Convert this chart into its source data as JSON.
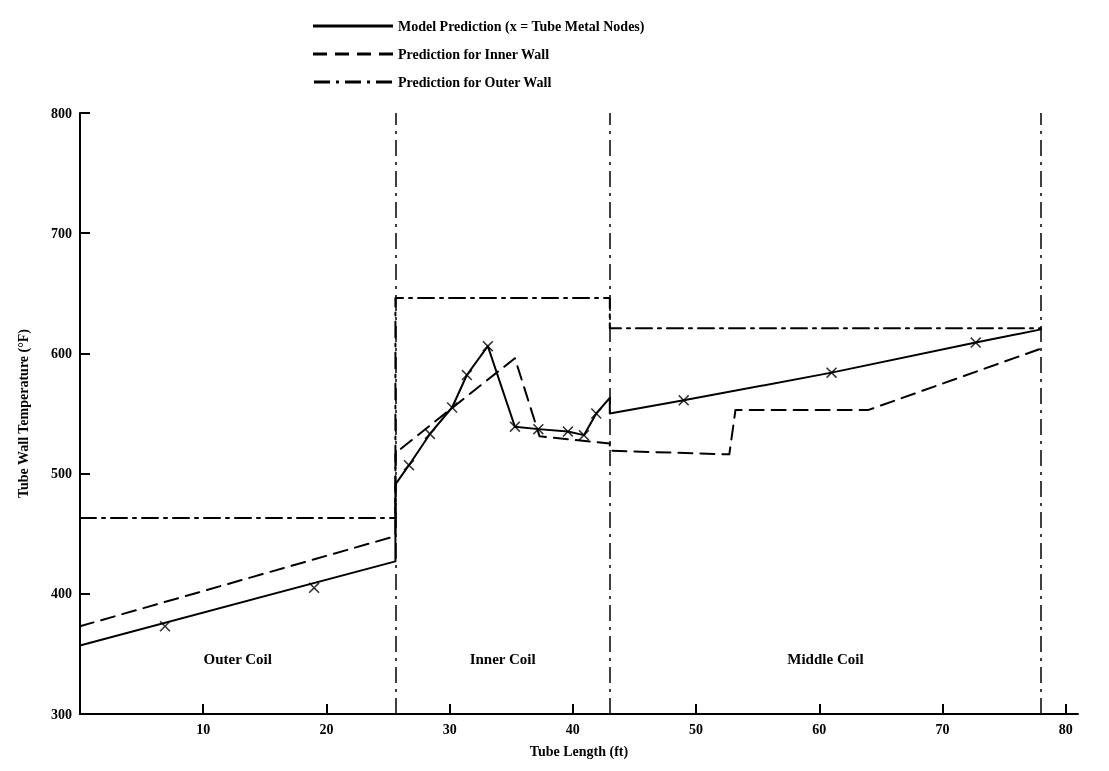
{
  "chart_data": {
    "type": "line",
    "xlabel": "Tube Length (ft)",
    "ylabel": "Tube Wall Temperature (°F)",
    "xlim": [
      0,
      81
    ],
    "xticks": [
      10,
      20,
      30,
      40,
      50,
      60,
      70,
      80
    ],
    "ylim": [
      300,
      800
    ],
    "yticks": [
      300,
      400,
      500,
      600,
      700,
      800
    ],
    "grid": false,
    "legend": "top",
    "series": [
      {
        "name": "Model Prediction (x = Tube Metal Nodes)",
        "color": "#000000",
        "line_style": "solid",
        "marker": "none",
        "x": [
          0,
          25.6,
          25.6,
          26.7,
          28.4,
          30.2,
          31.4,
          33.1,
          35.3,
          37.2,
          39.6,
          40.9,
          41.9,
          43,
          43,
          49,
          61,
          72.7,
          78
        ],
        "values": [
          357,
          427,
          491,
          507,
          533,
          555,
          582,
          606,
          539,
          537,
          535,
          532,
          550,
          563,
          550,
          561,
          584,
          609,
          620
        ]
      },
      {
        "name": "Prediction for Inner Wall",
        "color": "#000000",
        "line_style": "dashed",
        "marker": "none",
        "x": [
          0,
          25.6,
          25.6,
          30,
          35.3,
          37.3,
          43,
          43,
          52.7,
          53.2,
          64,
          78
        ],
        "values": [
          373,
          448,
          517,
          553,
          596,
          531,
          525,
          519,
          516,
          553,
          553,
          604
        ]
      },
      {
        "name": "Prediction for Outer Wall",
        "color": "#000000",
        "line_style": "dashdot",
        "marker": "none",
        "x": [
          0,
          25.6,
          25.6,
          43,
          43,
          78
        ],
        "values": [
          463,
          463,
          646,
          646,
          621,
          621
        ]
      },
      {
        "type": "scatter",
        "color": "#000000",
        "marker": "cross",
        "x": [
          6.9,
          19,
          26.7,
          28.4,
          30.2,
          31.4,
          33.1,
          35.3,
          37.2,
          39.6,
          40.9,
          41.9,
          49,
          61,
          72.7
        ],
        "values": [
          373,
          405,
          507,
          533,
          555,
          582,
          606,
          539,
          537,
          535,
          532,
          550,
          561,
          584,
          609
        ]
      }
    ],
    "ref_lines": [
      {
        "axis": "x",
        "value": 25.6,
        "line_style": "dashdot",
        "color": "#000000"
      },
      {
        "axis": "x",
        "value": 43,
        "line_style": "dashdot",
        "color": "#000000"
      },
      {
        "axis": "x",
        "value": 78,
        "line_style": "dashdot",
        "color": "#000000"
      }
    ],
    "annotations": [
      "Outer Coil",
      "Inner Coil",
      "Middle Coil"
    ]
  }
}
